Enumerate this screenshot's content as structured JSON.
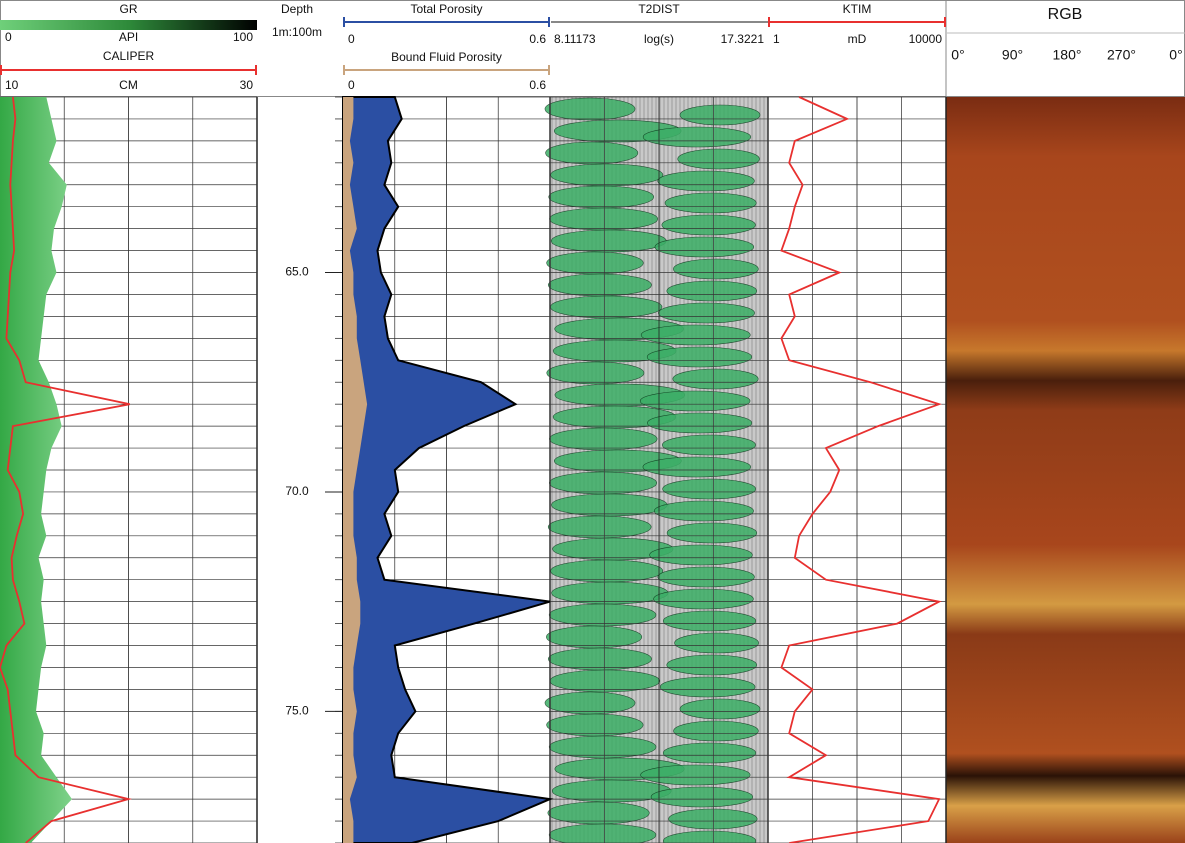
{
  "chart_data": {
    "type": "line",
    "depth_title": "Depth",
    "depth_scale": "1m:100m",
    "y": [
      61,
      61.5,
      62,
      62.5,
      63,
      63.5,
      64,
      64.5,
      65,
      65.5,
      66,
      66.5,
      67,
      67.5,
      68,
      68.5,
      69,
      69.5,
      70,
      70.5,
      71,
      71.5,
      72,
      72.5,
      73,
      73.5,
      74,
      74.5,
      75,
      75.5,
      76,
      76.5,
      77,
      77.5,
      78
    ],
    "ylim": [
      61,
      78
    ],
    "yticks": [
      {
        "value": 65,
        "label": "65.0"
      },
      {
        "value": 70,
        "label": "70.0"
      },
      {
        "value": 75,
        "label": "75.0"
      }
    ],
    "series": [
      {
        "name": "GR",
        "unit": "API",
        "color": "#3cb54a",
        "xlim": [
          0,
          100
        ],
        "values": [
          18,
          20,
          22,
          19,
          26,
          24,
          21,
          20,
          22,
          18,
          17,
          16,
          15,
          19,
          22,
          24,
          20,
          18,
          17,
          16,
          18,
          15,
          17,
          16,
          17,
          18,
          16,
          15,
          14,
          17,
          16,
          22,
          28,
          20,
          12
        ]
      },
      {
        "name": "CALIPER",
        "unit": "CM",
        "color": "#e8302f",
        "xlim": [
          10,
          30
        ],
        "values": [
          11.0,
          11.2,
          11.0,
          10.9,
          10.8,
          10.9,
          11.0,
          11.1,
          10.8,
          10.7,
          10.6,
          10.5,
          11.5,
          12.0,
          20.1,
          11.0,
          10.8,
          10.6,
          11.5,
          11.8,
          11.3,
          10.9,
          11.0,
          11.5,
          11.9,
          10.5,
          10.0,
          10.6,
          10.8,
          11.0,
          11.2,
          13.0,
          20.0,
          14.0,
          12.0
        ]
      },
      {
        "name": "Total Porosity",
        "color": "#2b4fa3",
        "xlim": [
          0,
          0.6
        ],
        "values": [
          0.15,
          0.17,
          0.13,
          0.14,
          0.12,
          0.16,
          0.12,
          0.1,
          0.11,
          0.14,
          0.12,
          0.13,
          0.16,
          0.4,
          0.5,
          0.35,
          0.22,
          0.15,
          0.16,
          0.12,
          0.14,
          0.1,
          0.12,
          0.6,
          0.38,
          0.15,
          0.16,
          0.18,
          0.21,
          0.16,
          0.14,
          0.15,
          0.6,
          0.45,
          0.2
        ]
      },
      {
        "name": "Bound Fluid Porosity",
        "color": "#c9a47e",
        "xlim": [
          0,
          0.6
        ],
        "values": [
          0.03,
          0.03,
          0.02,
          0.03,
          0.02,
          0.03,
          0.04,
          0.02,
          0.03,
          0.03,
          0.04,
          0.04,
          0.05,
          0.06,
          0.07,
          0.06,
          0.05,
          0.04,
          0.03,
          0.03,
          0.03,
          0.04,
          0.04,
          0.05,
          0.05,
          0.04,
          0.03,
          0.03,
          0.04,
          0.03,
          0.03,
          0.04,
          0.02,
          0.03,
          0.03
        ]
      },
      {
        "name": "KTIM",
        "unit": "mD",
        "color": "#e8302f",
        "xlim": [
          1,
          10000
        ],
        "log": true,
        "values": [
          5,
          60,
          4,
          3,
          6,
          4,
          3,
          2,
          40,
          3,
          4,
          2,
          3,
          200,
          7000,
          300,
          20,
          40,
          25,
          10,
          5,
          4,
          20,
          7000,
          800,
          3,
          2,
          10,
          4,
          3,
          20,
          3,
          7000,
          4000,
          3
        ]
      }
    ],
    "t2dist": {
      "name": "T2DIST",
      "unit": "log(s)",
      "xlim": [
        8.11173,
        17.3221
      ]
    },
    "image": {
      "title": "RGB",
      "xticks": [
        "0°",
        "90°",
        "180°",
        "270°",
        "0°"
      ]
    }
  }
}
